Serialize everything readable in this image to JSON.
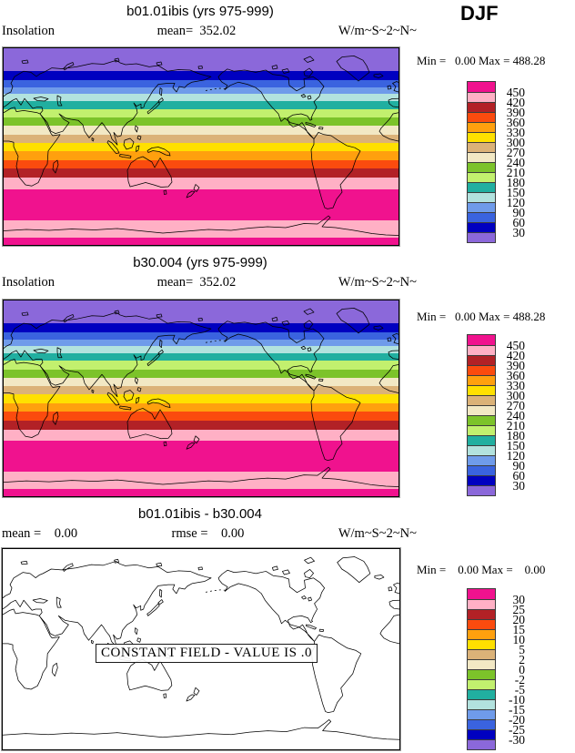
{
  "season": "DJF",
  "panels": [
    {
      "title": "b01.01ibis (yrs 975-999)",
      "left_label": "Insolation",
      "center_label": "mean=  352.02",
      "units": "W/m~S~2~N~",
      "minmax_line": "Min =   0.00 Max = 488.28"
    },
    {
      "title": "b30.004 (yrs 975-999)",
      "left_label": "Insolation",
      "center_label": "mean=  352.02",
      "units": "W/m~S~2~N~",
      "minmax_line": "Min =   0.00 Max = 488.28"
    },
    {
      "title": "b01.01ibis - b30.004",
      "left_label": "mean =    0.00",
      "center_label": "rmse =    0.00",
      "units": "W/m~S~2~N~",
      "minmax_line": "Min =    0.00 Max =    0.00",
      "overlay_note": "CONSTANT FIELD - VALUE IS .0"
    }
  ],
  "colorbars": {
    "abs": {
      "labels": [
        "450",
        "420",
        "390",
        "360",
        "330",
        "300",
        "270",
        "240",
        "210",
        "180",
        "150",
        "120",
        "90",
        "60",
        "30"
      ],
      "colors": [
        "#F0128E",
        "#FFB0C5",
        "#B22126",
        "#FB4B0E",
        "#FFA00E",
        "#FFE000",
        "#DBB278",
        "#F2E8C4",
        "#7CC32A",
        "#C2F06E",
        "#21AFA0",
        "#B2E2DE",
        "#6F9BEA",
        "#3A63DF",
        "#0000C0",
        "#8B68DA"
      ]
    },
    "diff": {
      "labels": [
        "30",
        "25",
        "20",
        "15",
        "10",
        "5",
        "2",
        "0",
        "-2",
        "-5",
        "-10",
        "-15",
        "-20",
        "-25",
        "-30"
      ],
      "colors": [
        "#F0128E",
        "#FFB0C5",
        "#B22126",
        "#FB4B0E",
        "#FFA00E",
        "#FFE000",
        "#DBB278",
        "#F2E8C4",
        "#7CC32A",
        "#C2F06E",
        "#21AFA0",
        "#B2E2DE",
        "#6F9BEA",
        "#3A63DF",
        "#0000C0",
        "#8B68DA"
      ]
    }
  },
  "map_bands": [
    {
      "range": "<30",
      "color": "#8B68DA",
      "height_pct": 11.6
    },
    {
      "range": "30-60",
      "color": "#0000C0",
      "height_pct": 4.6
    },
    {
      "range": "60-90",
      "color": "#3A63DF",
      "height_pct": 3.7
    },
    {
      "range": "90-120",
      "color": "#6F9BEA",
      "height_pct": 3.2
    },
    {
      "range": "120-150",
      "color": "#B2E2DE",
      "height_pct": 3.9
    },
    {
      "range": "150-180",
      "color": "#21AFA0",
      "height_pct": 3.9
    },
    {
      "range": "180-210",
      "color": "#C2F06E",
      "height_pct": 4.4
    },
    {
      "range": "210-240",
      "color": "#7CC32A",
      "height_pct": 4.2
    },
    {
      "range": "240-270",
      "color": "#F2E8C4",
      "height_pct": 4.4
    },
    {
      "range": "270-300",
      "color": "#DBB278",
      "height_pct": 4.2
    },
    {
      "range": "300-330",
      "color": "#FFE000",
      "height_pct": 4.4
    },
    {
      "range": "330-360",
      "color": "#FFA00E",
      "height_pct": 4.4
    },
    {
      "range": "360-390",
      "color": "#FB4B0E",
      "height_pct": 4.4
    },
    {
      "range": "390-420",
      "color": "#B22126",
      "height_pct": 4.6
    },
    {
      "range": "420-450",
      "color": "#FFB0C5",
      "height_pct": 6.0
    },
    {
      "range": ">450",
      "color": "#F0128E",
      "height_pct": 15.6
    },
    {
      "range": "420-450",
      "color": "#FFB0C5",
      "height_pct": 9.0
    },
    {
      "range": ">450",
      "color": "#F0128E",
      "height_pct": 3.5
    }
  ],
  "chart_data": [
    {
      "type": "heatmap",
      "subtype": "filled-contour world map, cylindrical lat-lon, Pacific-centered, lon 0-360E, lat 90N-90S",
      "title": "b01.01ibis (yrs 975-999)",
      "field": "Insolation",
      "units_label": "W/m~S~2~N~",
      "season": "DJF",
      "mean": 352.02,
      "min": 0.0,
      "max": 488.28,
      "contour_levels": [
        30,
        60,
        90,
        120,
        150,
        180,
        210,
        240,
        270,
        300,
        330,
        360,
        390,
        420,
        450
      ],
      "palette_top_to_bottom": [
        "#F0128E",
        "#FFB0C5",
        "#B22126",
        "#FB4B0E",
        "#FFA00E",
        "#FFE000",
        "#DBB278",
        "#F2E8C4",
        "#7CC32A",
        "#C2F06E",
        "#21AFA0",
        "#B2E2DE",
        "#6F9BEA",
        "#3A63DF",
        "#0000C0",
        "#8B68DA"
      ],
      "zonal_bands_north_to_south": [
        {
          "lat": "90N-69N",
          "value": "<30"
        },
        {
          "lat": "69N-61N",
          "value": "30-60"
        },
        {
          "lat": "61N-54N",
          "value": "60-90"
        },
        {
          "lat": "54N-48N",
          "value": "90-120"
        },
        {
          "lat": "48N-41N",
          "value": "120-150"
        },
        {
          "lat": "41N-34N",
          "value": "150-180"
        },
        {
          "lat": "34N-26N",
          "value": "180-210"
        },
        {
          "lat": "26N-18N",
          "value": "210-240"
        },
        {
          "lat": "18N-10N",
          "value": "240-270"
        },
        {
          "lat": "10N-3N",
          "value": "270-300"
        },
        {
          "lat": "3N-5S",
          "value": "300-330"
        },
        {
          "lat": "5S-13S",
          "value": "330-360"
        },
        {
          "lat": "13S-21S",
          "value": "360-390"
        },
        {
          "lat": "21S-29S",
          "value": "390-420"
        },
        {
          "lat": "29S-40S",
          "value": "420-450"
        },
        {
          "lat": "40S-68S",
          "value": ">450"
        },
        {
          "lat": "68S-84S",
          "value": "420-450"
        },
        {
          "lat": "84S-90S",
          "value": ">450"
        }
      ]
    },
    {
      "type": "heatmap",
      "subtype": "filled-contour world map, cylindrical lat-lon, Pacific-centered, lon 0-360E, lat 90N-90S",
      "title": "b30.004 (yrs 975-999)",
      "field": "Insolation",
      "units_label": "W/m~S~2~N~",
      "season": "DJF",
      "mean": 352.02,
      "min": 0.0,
      "max": 488.28,
      "contour_levels": [
        30,
        60,
        90,
        120,
        150,
        180,
        210,
        240,
        270,
        300,
        330,
        360,
        390,
        420,
        450
      ],
      "palette_top_to_bottom": [
        "#F0128E",
        "#FFB0C5",
        "#B22126",
        "#FB4B0E",
        "#FFA00E",
        "#FFE000",
        "#DBB278",
        "#F2E8C4",
        "#7CC32A",
        "#C2F06E",
        "#21AFA0",
        "#B2E2DE",
        "#6F9BEA",
        "#3A63DF",
        "#0000C0",
        "#8B68DA"
      ],
      "note": "identical zonal band pattern to first panel"
    },
    {
      "type": "heatmap",
      "subtype": "difference map (model minus model), blank/white field",
      "title": "b01.01ibis - b30.004",
      "units_label": "W/m~S~2~N~",
      "mean": 0.0,
      "rmse": 0.0,
      "min": 0.0,
      "max": 0.0,
      "contour_levels": [
        -30,
        -25,
        -20,
        -15,
        -10,
        -5,
        -2,
        0,
        2,
        5,
        10,
        15,
        20,
        25,
        30
      ],
      "palette_top_to_bottom": [
        "#F0128E",
        "#FFB0C5",
        "#B22126",
        "#FB4B0E",
        "#FFA00E",
        "#FFE000",
        "#DBB278",
        "#F2E8C4",
        "#7CC32A",
        "#C2F06E",
        "#21AFA0",
        "#B2E2DE",
        "#6F9BEA",
        "#3A63DF",
        "#0000C0",
        "#8B68DA"
      ],
      "annotation": "CONSTANT FIELD - VALUE IS .0",
      "field_values": "all zero"
    }
  ]
}
